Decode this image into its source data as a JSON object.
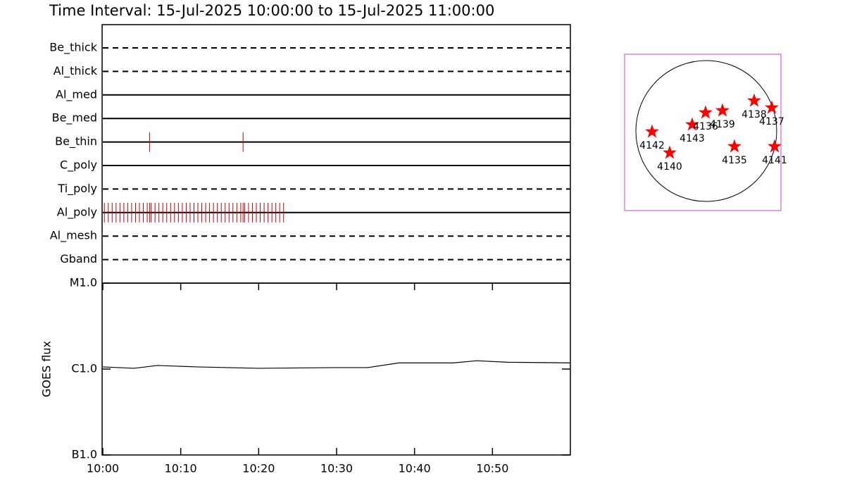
{
  "chart_data": [
    {
      "type": "timeline",
      "title": "Time Interval: 15-Jul-2025 10:00:00 to 15-Jul-2025 11:00:00",
      "categories": [
        "Be_thick",
        "Al_thick",
        "Al_med",
        "Be_med",
        "Be_thin",
        "C_poly",
        "Ti_poly",
        "Al_poly",
        "Al_mesh",
        "Gband"
      ],
      "line_styles": [
        "dashed",
        "dashed",
        "solid",
        "solid",
        "solid",
        "solid",
        "dashed",
        "solid",
        "dashed",
        "dashed"
      ],
      "events": [
        [],
        [],
        [],
        [],
        [
          6.0,
          18.0
        ],
        [],
        [],
        [
          0.2,
          0.7,
          1.2,
          1.7,
          2.2,
          2.7,
          3.2,
          3.7,
          4.2,
          4.7,
          5.2,
          5.7,
          6.0,
          6.2,
          6.7,
          7.2,
          7.7,
          8.2,
          8.7,
          9.2,
          9.7,
          10.2,
          10.7,
          11.2,
          11.7,
          12.2,
          12.7,
          13.2,
          13.7,
          14.2,
          14.7,
          15.2,
          15.7,
          16.2,
          16.7,
          17.2,
          17.7,
          18.0,
          18.2,
          18.7,
          19.2,
          19.7,
          20.2,
          20.7,
          21.2,
          21.7,
          22.2,
          22.7,
          23.2
        ],
        [],
        []
      ],
      "color": "#cc0000",
      "xlim": [
        0,
        60
      ]
    },
    {
      "type": "line",
      "ylabel": "GOES flux",
      "x": [
        0,
        4,
        7,
        12,
        20,
        30,
        34,
        38,
        45,
        48,
        52,
        60
      ],
      "values": [
        1.06e-06,
        1.02e-06,
        1.1e-06,
        1.06e-06,
        1.02e-06,
        1.04e-06,
        1.04e-06,
        1.18e-06,
        1.18e-06,
        1.25e-06,
        1.2e-06,
        1.18e-06
      ],
      "color": "#000000",
      "log_scale": true,
      "xlim": [
        0,
        60
      ],
      "xticks": [
        {
          "value": 0,
          "label": "10:00"
        },
        {
          "value": 10,
          "label": "10:10"
        },
        {
          "value": 20,
          "label": "10:20"
        },
        {
          "value": 30,
          "label": "10:30"
        },
        {
          "value": 40,
          "label": "10:40"
        },
        {
          "value": 50,
          "label": "10:50"
        }
      ],
      "ylim": [
        1e-07,
        1e-05
      ],
      "yticks": [
        {
          "value": 1e-07,
          "label": "B1.0"
        },
        {
          "value": 1e-06,
          "label": "C1.0"
        },
        {
          "value": 1e-05,
          "label": "M1.0"
        }
      ]
    },
    {
      "type": "scatter",
      "labels": [
        "4142",
        "4140",
        "4143",
        "4136",
        "4139",
        "4138",
        "4137",
        "4135",
        "4141"
      ],
      "x": [
        -0.77,
        -0.52,
        -0.2,
        -0.01,
        0.23,
        0.68,
        0.93,
        0.4,
        0.97
      ],
      "values": [
        -0.01,
        -0.31,
        0.09,
        0.26,
        0.29,
        0.43,
        0.33,
        -0.22,
        -0.22
      ],
      "color": "#ff0000",
      "xlim": [
        -1.16,
        1.06
      ],
      "ylim": [
        -1.13,
        1.09
      ]
    }
  ]
}
